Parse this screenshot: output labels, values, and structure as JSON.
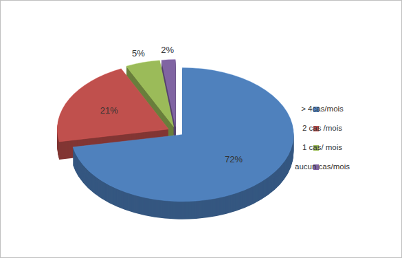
{
  "chart_data": {
    "type": "pie",
    "categories": [
      "> 4cas/mois",
      "2 cas /mois",
      "1 cas/ mois",
      "aucun cas/mois"
    ],
    "values": [
      72,
      21,
      5,
      2
    ],
    "value_labels": [
      "72%",
      "21%",
      "5%",
      "2%"
    ],
    "colors": [
      "#4f81bd",
      "#c0504d",
      "#9bbb59",
      "#8064a2"
    ],
    "data_labels": true,
    "legend": "right"
  }
}
